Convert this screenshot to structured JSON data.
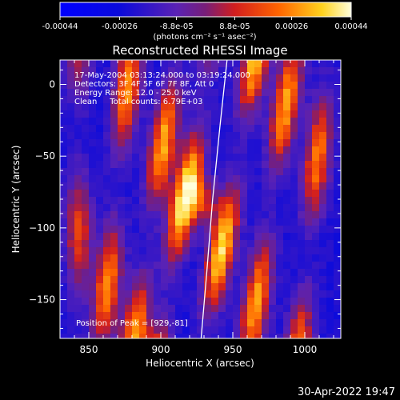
{
  "colorbar": {
    "tick_labels": [
      "-0.00044",
      "-0.00026",
      "-8.8e-05",
      "8.8e-05",
      "0.00026",
      "0.00044"
    ],
    "tick_values": [
      -0.00044,
      -0.00026,
      -8.8e-05,
      8.8e-05,
      0.00026,
      0.00044
    ],
    "range": [
      -0.00044,
      0.00044
    ],
    "unit_label": "(photons cm⁻² s⁻¹ asec⁻²)"
  },
  "chart_data": {
    "type": "heatmap",
    "title": "Reconstructed RHESSI Image",
    "xlabel": "Heliocentric X (arcsec)",
    "ylabel": "Heliocentric Y (arcsec)",
    "xlim": [
      830,
      1025
    ],
    "ylim": [
      -177,
      17
    ],
    "xticks": [
      850,
      900,
      950,
      1000
    ],
    "xtick_labels": [
      "850",
      "900",
      "950",
      "1000"
    ],
    "yticks": [
      0,
      -50,
      -100,
      -150
    ],
    "ytick_labels": [
      "0",
      "−50",
      "−100",
      "−150"
    ],
    "annotations": [
      "17-May-2004 03:13:24.000 to 03:19:24.000",
      "Detectors: 3F 4F 5F 6F 7F 8F, Att 0",
      "Energy Range: 12.0 - 25.0 keV",
      "Clean     Total counts: 6.79E+03"
    ],
    "peak_label": "Position of Peak = [929,-81]",
    "peak": [
      929,
      -81
    ],
    "stripes": [
      {
        "x0": 843,
        "slope": 0.0,
        "amp": 0.55
      },
      {
        "x0": 877,
        "slope": 0.1,
        "amp": 0.75
      },
      {
        "x0": 908,
        "slope": 0.15,
        "amp": 0.8
      },
      {
        "x0": 931,
        "slope": 0.18,
        "amp": 1.0
      },
      {
        "x0": 963,
        "slope": 0.18,
        "amp": 0.9
      },
      {
        "x0": 989,
        "slope": 0.15,
        "amp": 0.8
      },
      {
        "x0": 1014,
        "slope": 0.1,
        "amp": 0.7
      }
    ],
    "limb_points": [
      [
        946,
        17
      ],
      [
        941,
        -30
      ],
      [
        936,
        -80
      ],
      [
        932,
        -130
      ],
      [
        928,
        -177
      ]
    ]
  },
  "footer_date": "30-Apr-2022 19:47"
}
